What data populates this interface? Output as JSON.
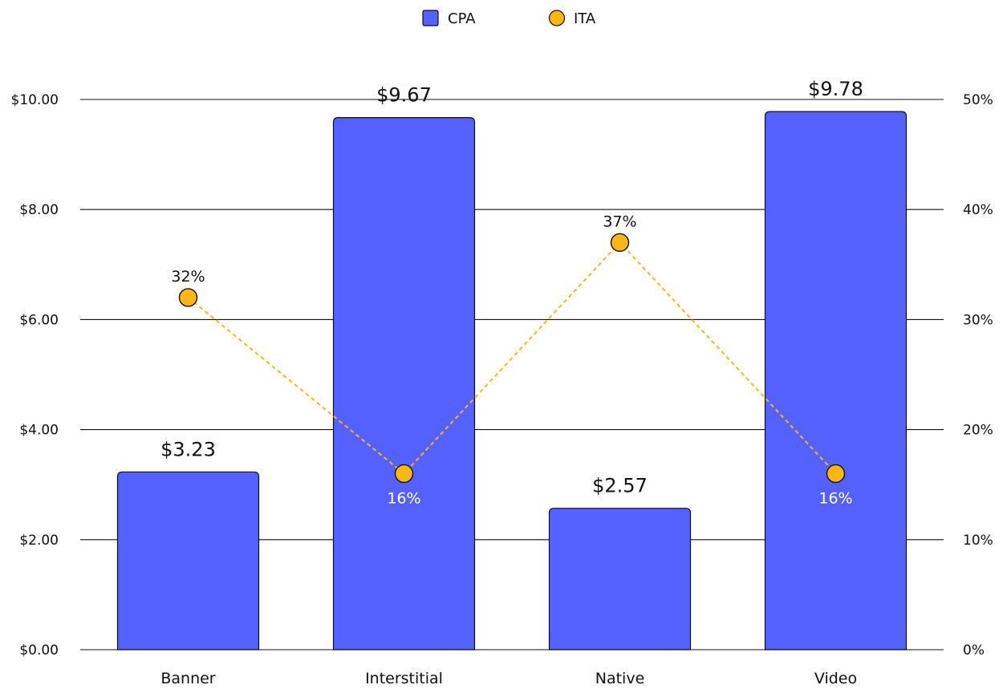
{
  "chart_data": {
    "type": "bar",
    "categories": [
      "Banner",
      "Interstitial",
      "Native",
      "Video"
    ],
    "series": [
      {
        "name": "CPA",
        "kind": "bar",
        "axis": "left",
        "values": [
          3.23,
          9.67,
          2.57,
          9.78
        ],
        "labels": [
          "$3.23",
          "$9.67",
          "$2.57",
          "$9.78"
        ],
        "color": "#5461FF"
      },
      {
        "name": "ITA",
        "kind": "line",
        "line_style": "dashed",
        "axis": "right",
        "values": [
          32,
          16,
          37,
          16
        ],
        "labels": [
          "32%",
          "16%",
          "37%",
          "16%"
        ],
        "label_colors": [
          "#111111",
          "#FFFFFF",
          "#111111",
          "#FFFFFF"
        ],
        "color": "#FBB614"
      }
    ],
    "y_left": {
      "ylim": [
        0,
        10
      ],
      "ticks": [
        0,
        2,
        4,
        6,
        8,
        10
      ],
      "tick_labels": [
        "$0.00",
        "$2.00",
        "$4.00",
        "$6.00",
        "$8.00",
        "$10.00"
      ]
    },
    "y_right": {
      "ylim": [
        0,
        50
      ],
      "ticks": [
        0,
        10,
        20,
        30,
        40,
        50
      ],
      "tick_labels": [
        "0%",
        "10%",
        "20%",
        "30%",
        "40%",
        "50%"
      ]
    },
    "grid": true,
    "legend": {
      "position": "top-center",
      "entries": [
        {
          "label": "CPA",
          "marker": "square",
          "color": "#5461FF"
        },
        {
          "label": "ITA",
          "marker": "circle",
          "color": "#FBB614"
        }
      ]
    },
    "title": "",
    "xlabel": "",
    "ylabel": ""
  }
}
